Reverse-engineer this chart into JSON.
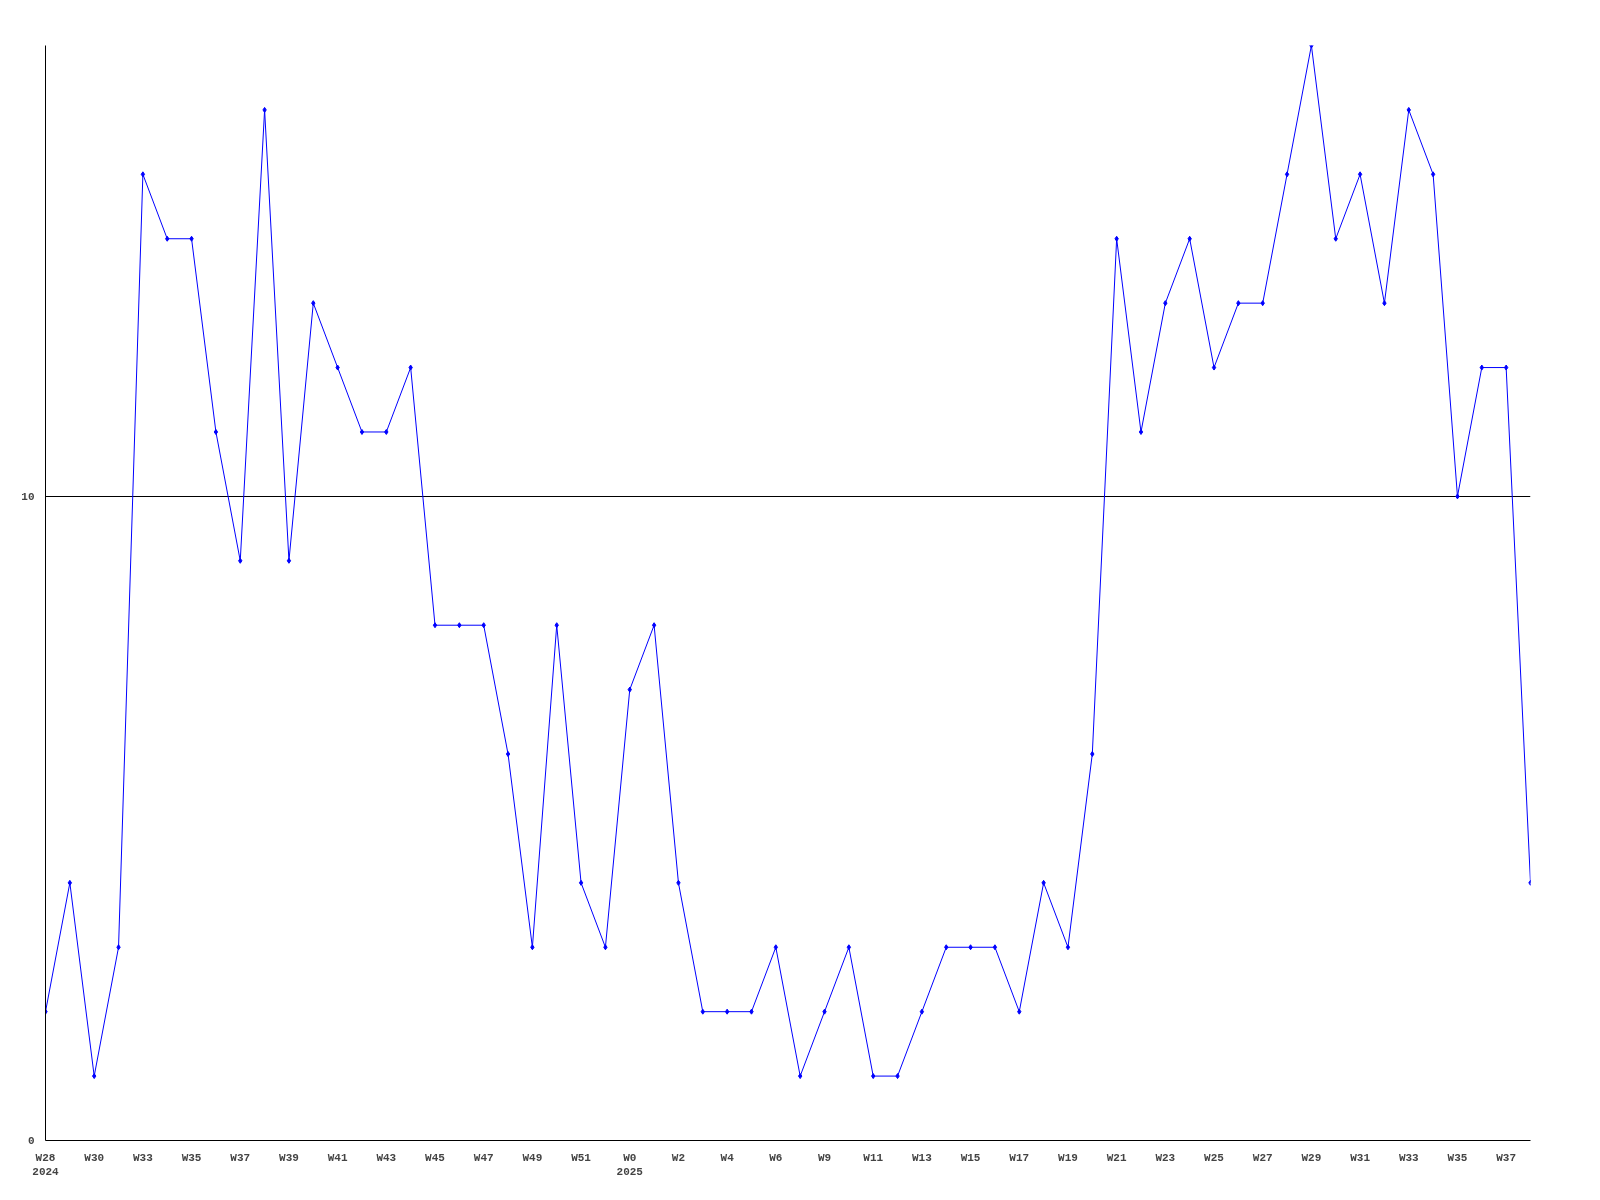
{
  "chart_data": {
    "type": "line",
    "categories": [
      "W28\n2024",
      null,
      "W30",
      null,
      "W33",
      null,
      "W35",
      null,
      "W37",
      null,
      "W39",
      null,
      "W41",
      null,
      "W43",
      null,
      "W45",
      null,
      "W47",
      null,
      "W49",
      null,
      "W51",
      null,
      "W0\n2025",
      null,
      "W2",
      null,
      "W4",
      null,
      "W6",
      null,
      "W9",
      null,
      "W11",
      null,
      "W13",
      null,
      "W15",
      null,
      "W17",
      null,
      "W19",
      null,
      "W21",
      null,
      "W23",
      null,
      "W25",
      null,
      "W27",
      null,
      "W29",
      null,
      "W31",
      null,
      "W33",
      null,
      "W35",
      null,
      "W37",
      null
    ],
    "series": [
      {
        "color": "#0000ff",
        "values": [
          2,
          4,
          1,
          3,
          15,
          14,
          14,
          11,
          9,
          16,
          9,
          13,
          12,
          11,
          11,
          12,
          8,
          8,
          8,
          6,
          3,
          8,
          4,
          3,
          7,
          8,
          4,
          2,
          2,
          2,
          3,
          1,
          2,
          3,
          1,
          1,
          2,
          3,
          3,
          3,
          2,
          4,
          3,
          6,
          14,
          11,
          13,
          14,
          12,
          13,
          13,
          15,
          17,
          14,
          15,
          13,
          16,
          15,
          10,
          12,
          12,
          4
        ]
      }
    ],
    "ylim": [
      0,
      17
    ],
    "yticks": [
      0,
      10
    ],
    "grid": "y",
    "marker": "diamond",
    "line_style": "solid"
  }
}
